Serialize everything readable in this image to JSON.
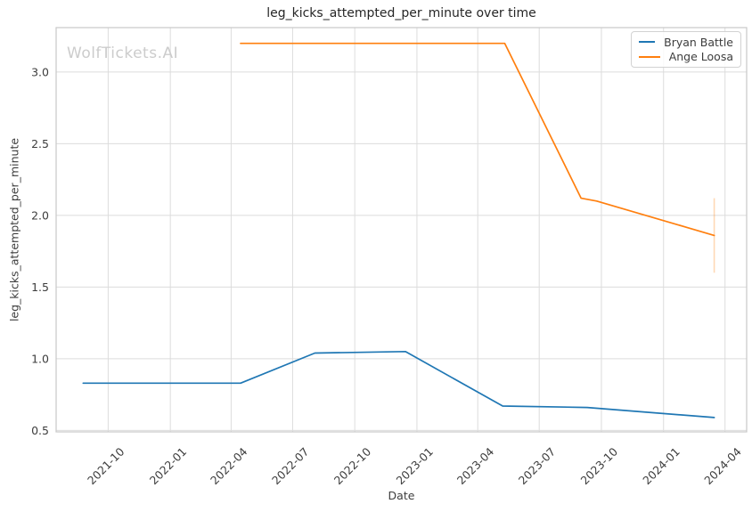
{
  "figure": {
    "title": "leg_kicks_attempted_per_minute over time",
    "watermark": "WolfTickets.AI",
    "xlabel": "Date",
    "ylabel": "leg_kicks_attempted_per_minute"
  },
  "legend": {
    "position": "upper right",
    "items": [
      "Bryan Battle",
      "Ange Loosa"
    ]
  },
  "colors": {
    "series_bryan_battle": "#1f77b4",
    "series_ange_loosa": "#ff7f0e",
    "grid": "#dcdcdc",
    "spine": "#c8c8c8",
    "tick_text": "#3d3d3d",
    "title_text": "#262626",
    "watermark_text": "#cccccc"
  },
  "chart_data": {
    "type": "line",
    "title": "leg_kicks_attempted_per_minute over time",
    "xlabel": "Date",
    "ylabel": "leg_kicks_attempted_per_minute",
    "grid": true,
    "legend_position": "upper right",
    "x_domain": [
      "2021-07-16",
      "2024-05-03"
    ],
    "y_domain": [
      0.49,
      3.31
    ],
    "x_tick_labels": [
      "2021-10",
      "2022-01",
      "2022-04",
      "2022-07",
      "2022-10",
      "2023-01",
      "2023-04",
      "2023-07",
      "2023-10",
      "2024-01",
      "2024-04"
    ],
    "x_tick_dates": [
      "2021-10-01",
      "2022-01-01",
      "2022-04-01",
      "2022-07-01",
      "2022-10-01",
      "2023-01-01",
      "2023-04-01",
      "2023-07-01",
      "2023-10-01",
      "2024-01-01",
      "2024-04-01"
    ],
    "y_ticks": [
      0.5,
      1.0,
      1.5,
      2.0,
      2.5,
      3.0
    ],
    "y_tick_labels": [
      "0.5",
      "1.0",
      "1.5",
      "2.0",
      "2.5",
      "3.0"
    ],
    "series": [
      {
        "name": "Bryan Battle",
        "color": "#1f77b4",
        "points": [
          [
            "2021-08-25",
            0.83
          ],
          [
            "2022-04-15",
            0.83
          ],
          [
            "2022-08-03",
            1.04
          ],
          [
            "2022-12-15",
            1.05
          ],
          [
            "2023-05-08",
            0.67
          ],
          [
            "2023-09-10",
            0.66
          ],
          [
            "2024-03-16",
            0.59
          ]
        ]
      },
      {
        "name": "Ange Loosa",
        "color": "#ff7f0e",
        "points": [
          [
            "2022-04-15",
            3.2
          ],
          [
            "2023-05-11",
            3.2
          ],
          [
            "2023-09-01",
            2.12
          ],
          [
            "2023-09-24",
            2.1
          ],
          [
            "2024-03-16",
            1.86
          ]
        ],
        "last_point_error_bar": {
          "date": "2024-03-16",
          "low": 1.6,
          "high": 2.12
        }
      }
    ]
  }
}
